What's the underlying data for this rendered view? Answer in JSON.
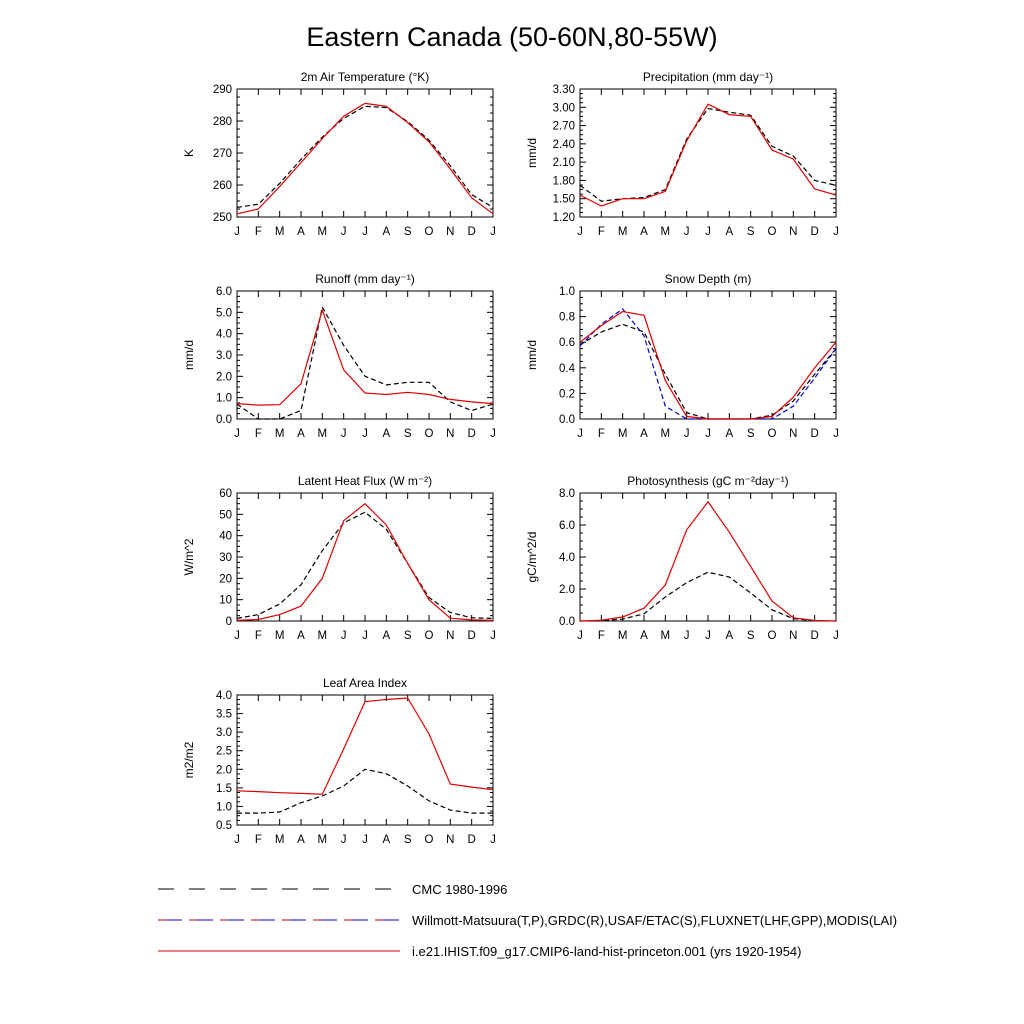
{
  "figure": {
    "title": "Eastern Canada (50-60N,80-55W)"
  },
  "legend": [
    {
      "label": "CMC 1980-1996",
      "style": "dashed",
      "colors": [
        "#000000"
      ]
    },
    {
      "label": "Willmott-Matsuura(T,P),GRDC(R),USAF/ETAC(S),FLUXNET(LHF,GPP),MODIS(LAI)",
      "style": "dashed",
      "colors": [
        "#c00000",
        "#0000cc"
      ]
    },
    {
      "label": "i.e21.IHIST.f09_g17.CMIP6-land-hist-princeton.001 (yrs 1920-1954)",
      "style": "solid",
      "colors": [
        "#e00000"
      ]
    }
  ],
  "chart_data": [
    {
      "type": "line",
      "title": "2m Air Temperature (°K)",
      "ylabel": "K",
      "x": [
        "J",
        "F",
        "M",
        "A",
        "M",
        "J",
        "J",
        "A",
        "S",
        "O",
        "N",
        "D",
        "J"
      ],
      "ylim": [
        250,
        290
      ],
      "yticks": [
        "250",
        "260",
        "270",
        "280",
        "290"
      ],
      "series": [
        {
          "color": "#000000",
          "dash": true,
          "values": [
            253,
            254,
            260.5,
            268,
            275,
            280.8,
            284.6,
            284.2,
            279.8,
            274,
            266,
            257,
            253
          ]
        },
        {
          "color": "#e00000",
          "dash": false,
          "values": [
            251,
            252.5,
            259.5,
            267,
            274.5,
            281.5,
            285.5,
            284.6,
            279.5,
            273.5,
            265,
            256,
            251
          ]
        }
      ]
    },
    {
      "type": "line",
      "title": "Precipitation (mm day⁻¹)",
      "ylabel": "mm/d",
      "x": [
        "J",
        "F",
        "M",
        "A",
        "M",
        "J",
        "J",
        "A",
        "S",
        "O",
        "N",
        "D",
        "J"
      ],
      "ylim": [
        1.2,
        3.3
      ],
      "yticks": [
        "1.20",
        "1.50",
        "1.80",
        "2.10",
        "2.40",
        "2.70",
        "3.00",
        "3.30"
      ],
      "series": [
        {
          "color": "#000000",
          "dash": true,
          "values": [
            1.72,
            1.46,
            1.5,
            1.52,
            1.65,
            2.48,
            2.98,
            2.92,
            2.87,
            2.36,
            2.2,
            1.8,
            1.72
          ]
        },
        {
          "color": "#e00000",
          "dash": false,
          "values": [
            1.56,
            1.38,
            1.5,
            1.5,
            1.62,
            2.45,
            3.05,
            2.88,
            2.85,
            2.3,
            2.15,
            1.66,
            1.56
          ]
        }
      ]
    },
    {
      "type": "line",
      "title": "Runoff (mm day⁻¹)",
      "ylabel": "mm/d",
      "x": [
        "J",
        "F",
        "M",
        "A",
        "M",
        "J",
        "J",
        "A",
        "S",
        "O",
        "N",
        "D",
        "J"
      ],
      "ylim": [
        0,
        6
      ],
      "yticks": [
        "0.0",
        "1.0",
        "2.0",
        "3.0",
        "4.0",
        "5.0",
        "6.0"
      ],
      "series": [
        {
          "color": "#000000",
          "dash": true,
          "values": [
            0.7,
            0.0,
            0.0,
            0.4,
            5.25,
            3.45,
            2.0,
            1.6,
            1.72,
            1.72,
            0.8,
            0.4,
            0.7
          ]
        },
        {
          "color": "#e00000",
          "dash": false,
          "values": [
            0.72,
            0.65,
            0.67,
            1.65,
            5.1,
            2.3,
            1.22,
            1.15,
            1.25,
            1.15,
            0.92,
            0.8,
            0.72
          ]
        }
      ]
    },
    {
      "type": "line",
      "title": "Snow Depth (m)",
      "ylabel": "mm/d",
      "x": [
        "J",
        "F",
        "M",
        "A",
        "M",
        "J",
        "J",
        "A",
        "S",
        "O",
        "N",
        "D",
        "J"
      ],
      "ylim": [
        0,
        1
      ],
      "yticks": [
        "0.0",
        "0.2",
        "0.4",
        "0.6",
        "0.8",
        "1.0"
      ],
      "series": [
        {
          "color": "#000000",
          "dash": true,
          "values": [
            0.58,
            0.68,
            0.74,
            0.68,
            0.35,
            0.05,
            0.0,
            0.0,
            0.0,
            0.03,
            0.14,
            0.35,
            0.55
          ]
        },
        {
          "color": "#0000cc",
          "dash": true,
          "values": [
            0.57,
            0.74,
            0.86,
            0.65,
            0.1,
            0.0,
            0.0,
            0.0,
            0.0,
            0.0,
            0.1,
            0.32,
            0.55
          ]
        },
        {
          "color": "#e00000",
          "dash": false,
          "values": [
            0.6,
            0.73,
            0.84,
            0.81,
            0.3,
            0.02,
            0.0,
            0.0,
            0.0,
            0.02,
            0.17,
            0.4,
            0.6
          ]
        }
      ]
    },
    {
      "type": "line",
      "title": "Latent Heat Flux (W m⁻²)",
      "ylabel": "W/m^2",
      "x": [
        "J",
        "F",
        "M",
        "A",
        "M",
        "J",
        "J",
        "A",
        "S",
        "O",
        "N",
        "D",
        "J"
      ],
      "ylim": [
        0,
        60
      ],
      "yticks": [
        "0",
        "10",
        "20",
        "30",
        "40",
        "50",
        "60"
      ],
      "series": [
        {
          "color": "#000000",
          "dash": true,
          "values": [
            1.2,
            3,
            8,
            17,
            33,
            46,
            51,
            43,
            27,
            11,
            4,
            1.5,
            1.2
          ]
        },
        {
          "color": "#e00000",
          "dash": false,
          "values": [
            0.3,
            0.7,
            3,
            7,
            20,
            47,
            55,
            45,
            27,
            10,
            1.3,
            0.5,
            0.3
          ]
        }
      ]
    },
    {
      "type": "line",
      "title": "Photosynthesis (gC m⁻²day⁻¹)",
      "ylabel": "gC/m^2/d",
      "x": [
        "J",
        "F",
        "M",
        "A",
        "M",
        "J",
        "J",
        "A",
        "S",
        "O",
        "N",
        "D",
        "J"
      ],
      "ylim": [
        0,
        8
      ],
      "yticks": [
        "0.0",
        "2.0",
        "4.0",
        "6.0",
        "8.0"
      ],
      "series": [
        {
          "color": "#000000",
          "dash": true,
          "values": [
            0,
            0.02,
            0.12,
            0.45,
            1.5,
            2.4,
            3.05,
            2.75,
            1.75,
            0.7,
            0.15,
            0.02,
            0
          ]
        },
        {
          "color": "#e00000",
          "dash": false,
          "values": [
            0,
            0.05,
            0.25,
            0.8,
            2.25,
            5.7,
            7.45,
            5.55,
            3.4,
            1.25,
            0.2,
            0.03,
            0
          ]
        }
      ]
    },
    {
      "type": "line",
      "title": "Leaf Area Index",
      "ylabel": "m2/m2",
      "x": [
        "J",
        "F",
        "M",
        "A",
        "M",
        "J",
        "J",
        "A",
        "S",
        "O",
        "N",
        "D",
        "J"
      ],
      "ylim": [
        0.5,
        4.0
      ],
      "yticks": [
        "0.5",
        "1.0",
        "1.5",
        "2.0",
        "2.5",
        "3.0",
        "3.5",
        "4.0"
      ],
      "series": [
        {
          "color": "#000000",
          "dash": true,
          "values": [
            0.82,
            0.82,
            0.85,
            1.1,
            1.28,
            1.55,
            2.0,
            1.88,
            1.55,
            1.15,
            0.9,
            0.82,
            0.82
          ]
        },
        {
          "color": "#e00000",
          "dash": false,
          "values": [
            1.42,
            1.4,
            1.37,
            1.35,
            1.33,
            2.55,
            3.82,
            3.88,
            3.92,
            2.95,
            1.6,
            1.52,
            1.45
          ]
        }
      ]
    }
  ]
}
